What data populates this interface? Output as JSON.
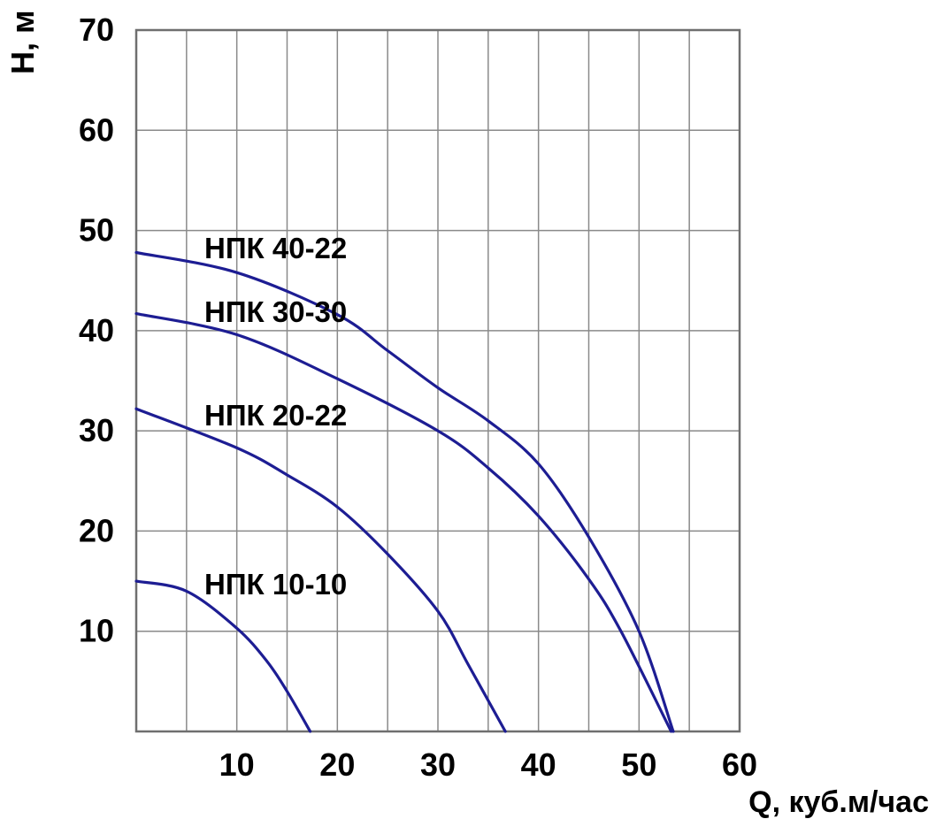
{
  "chart_data": {
    "type": "line",
    "title": "",
    "xlabel": "Q, куб.м/час",
    "ylabel": "Н, м",
    "xlim": [
      0,
      60
    ],
    "ylim": [
      0,
      70
    ],
    "grid": "on",
    "x_grid_step": 5,
    "y_grid_step": 10,
    "x_ticks": [
      "10",
      "20",
      "30",
      "40",
      "50",
      "60"
    ],
    "y_ticks": [
      "70",
      "60",
      "50",
      "40",
      "30",
      "20",
      "10"
    ],
    "legend_position": "inline-labels-on-chart",
    "colors": {
      "curve": "#1d1d93",
      "grid": "#8a8a8a",
      "border": "#6f6f6f",
      "text": "#000000",
      "background": "#ffffff"
    },
    "series": [
      {
        "id": "npk-40-22",
        "name": "НПК 40-22",
        "points": [
          [
            0,
            47.8
          ],
          [
            10,
            45.8
          ],
          [
            20,
            41.6
          ],
          [
            25,
            38.0
          ],
          [
            30,
            34.3
          ],
          [
            35,
            31.0
          ],
          [
            40,
            26.7
          ],
          [
            45,
            19.4
          ],
          [
            50,
            10.0
          ],
          [
            53.4,
            0
          ]
        ]
      },
      {
        "id": "npk-30-30",
        "name": "НПК 30-30",
        "points": [
          [
            0,
            41.7
          ],
          [
            10,
            39.6
          ],
          [
            20,
            35.2
          ],
          [
            30,
            30.0
          ],
          [
            35,
            26.3
          ],
          [
            40,
            21.5
          ],
          [
            45,
            15.2
          ],
          [
            48.2,
            10.0
          ],
          [
            53.2,
            0
          ]
        ]
      },
      {
        "id": "npk-20-22",
        "name": "НПК 20-22",
        "points": [
          [
            0,
            32.2
          ],
          [
            10,
            28.3
          ],
          [
            15,
            25.6
          ],
          [
            20,
            22.4
          ],
          [
            25,
            17.7
          ],
          [
            30,
            12.0
          ],
          [
            33,
            6.7
          ],
          [
            36.7,
            0
          ]
        ]
      },
      {
        "id": "npk-10-10",
        "name": "НПК 10-10",
        "points": [
          [
            0,
            15.0
          ],
          [
            5,
            14.0
          ],
          [
            10,
            10.3
          ],
          [
            13,
            7.0
          ],
          [
            15,
            4.0
          ],
          [
            17.3,
            0
          ]
        ]
      }
    ]
  }
}
